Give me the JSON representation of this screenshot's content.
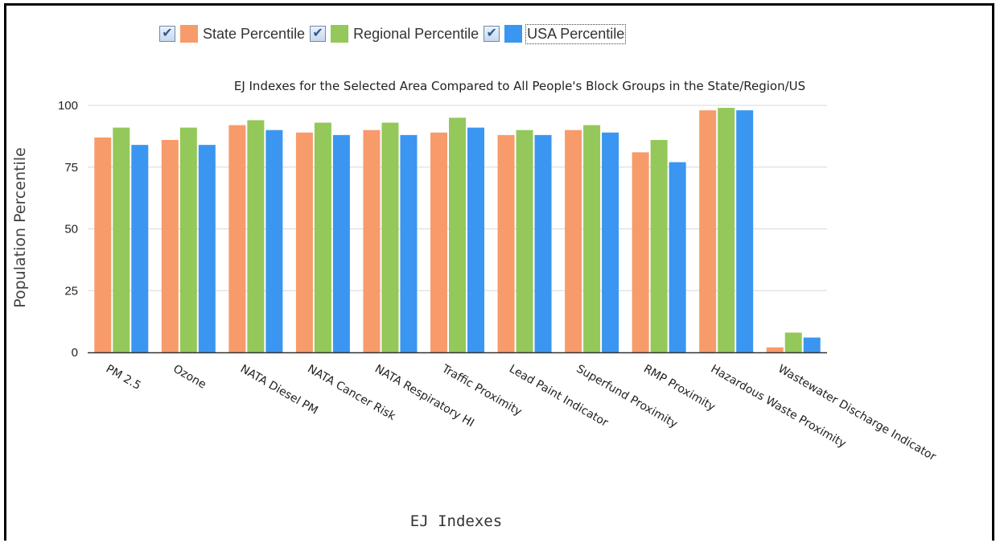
{
  "chart_data": {
    "type": "bar",
    "title": "EJ Indexes for the Selected Area Compared to All People's Block Groups in the State/Region/US",
    "xlabel": "EJ Indexes",
    "ylabel": "Population Percentile",
    "ylim": [
      0,
      100
    ],
    "yticks": [
      0,
      25,
      50,
      75,
      100
    ],
    "grid": true,
    "legend_position": "top",
    "categories": [
      "PM 2.5",
      "Ozone",
      "NATA Diesel PM",
      "NATA Cancer Risk",
      "NATA Respiratory HI",
      "Traffic Proximity",
      "Lead Paint Indicator",
      "Superfund Proximity",
      "RMP Proximity",
      "Hazardous Waste Proximity",
      "Wastewater Discharge Indicator"
    ],
    "series": [
      {
        "name": "State Percentile",
        "color": "#f89b6a",
        "values": [
          87,
          86,
          92,
          89,
          90,
          89,
          88,
          90,
          81,
          98,
          2
        ]
      },
      {
        "name": "Regional Percentile",
        "color": "#94c85a",
        "values": [
          91,
          91,
          94,
          93,
          93,
          95,
          90,
          92,
          86,
          99,
          8
        ]
      },
      {
        "name": "USA Percentile",
        "color": "#3a96f0",
        "values": [
          84,
          84,
          90,
          88,
          88,
          91,
          88,
          89,
          77,
          98,
          6
        ]
      }
    ]
  }
}
